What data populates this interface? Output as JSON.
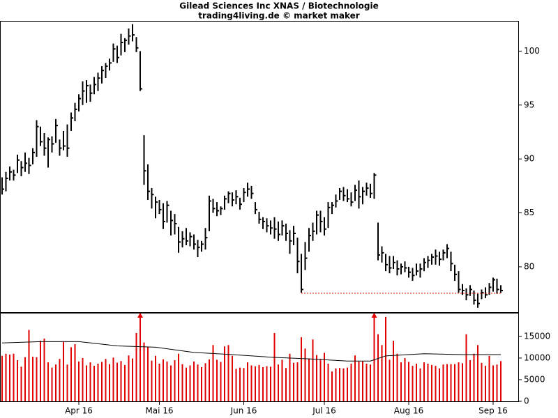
{
  "chart_data": {
    "type": "ohlc",
    "title": "Gilead Sciences Inc XNAS / Biotechnologie",
    "subtitle": "trading4living.de © market maker",
    "categories": [
      null,
      null,
      null,
      null,
      null,
      null,
      null,
      null,
      null,
      null,
      null,
      null,
      null,
      null,
      null,
      null,
      null,
      null,
      null,
      null,
      "Apr 16",
      null,
      null,
      null,
      null,
      null,
      null,
      null,
      null,
      null,
      null,
      null,
      null,
      null,
      null,
      null,
      null,
      null,
      null,
      null,
      null,
      "Mai 16",
      null,
      null,
      null,
      null,
      null,
      null,
      null,
      null,
      null,
      null,
      null,
      null,
      null,
      null,
      null,
      null,
      null,
      null,
      null,
      null,
      null,
      "Jun 16",
      null,
      null,
      null,
      null,
      null,
      null,
      null,
      null,
      null,
      null,
      null,
      null,
      null,
      null,
      null,
      null,
      null,
      null,
      null,
      null,
      "Jul 16",
      null,
      null,
      null,
      null,
      null,
      null,
      null,
      null,
      null,
      null,
      null,
      null,
      null,
      null,
      null,
      null,
      null,
      null,
      null,
      null,
      null,
      "Aug 16",
      null,
      null,
      null,
      null,
      null,
      null,
      null,
      null,
      null,
      null,
      null,
      null,
      null,
      null,
      null,
      null,
      null,
      null,
      null,
      null,
      null,
      "Sep 16",
      null,
      null
    ],
    "high": [
      88.3,
      88.8,
      89.3,
      89.0,
      90.4,
      89.8,
      90.6,
      90.1,
      91.0,
      93.6,
      93.0,
      92.4,
      92.0,
      92.1,
      93.7,
      91.8,
      92.6,
      93.2,
      94.3,
      95.2,
      96.0,
      97.2,
      97.3,
      96.9,
      97.6,
      98.0,
      98.6,
      98.9,
      99.3,
      100.7,
      100.5,
      101.6,
      101.2,
      102.1,
      102.5,
      101.3,
      100.0,
      92.2,
      89.5,
      87.3,
      86.5,
      86.2,
      85.9,
      86.1,
      85.2,
      84.9,
      83.7,
      83.3,
      83.6,
      83.2,
      83.0,
      82.5,
      82.4,
      83.6,
      86.6,
      86.3,
      86.0,
      85.6,
      86.6,
      87.0,
      86.9,
      87.1,
      86.4,
      87.3,
      87.8,
      87.5,
      86.0,
      85.1,
      84.6,
      84.5,
      84.3,
      84.6,
      84.2,
      84.3,
      84.0,
      83.4,
      83.8,
      82.7,
      81.2,
      82.3,
      83.6,
      84.1,
      85.2,
      85.2,
      84.6,
      86.0,
      86.0,
      86.7,
      87.3,
      87.4,
      87.2,
      86.9,
      87.6,
      88.0,
      87.4,
      87.8,
      87.7,
      88.7,
      84.1,
      81.9,
      81.2,
      81.0,
      81.0,
      80.6,
      80.3,
      80.5,
      80.0,
      79.9,
      80.3,
      80.3,
      80.8,
      81.0,
      81.2,
      81.6,
      81.4,
      81.6,
      82.1,
      81.4,
      80.2,
      79.6,
      78.4,
      78.0,
      78.3,
      77.8,
      77.5,
      77.9,
      78.1,
      78.5,
      79.0,
      78.9,
      78.3
    ],
    "low": [
      86.7,
      87.0,
      88.0,
      88.0,
      88.7,
      88.4,
      88.8,
      88.6,
      89.5,
      90.2,
      91.2,
      90.3,
      89.2,
      90.6,
      91.5,
      90.3,
      90.8,
      90.2,
      92.6,
      93.5,
      94.4,
      95.0,
      95.2,
      95.3,
      96.0,
      96.3,
      97.0,
      97.5,
      98.2,
      99.0,
      98.9,
      99.6,
      99.9,
      100.6,
      100.9,
      99.9,
      96.3,
      87.6,
      86.2,
      85.4,
      84.5,
      84.9,
      83.5,
      84.1,
      82.9,
      83.0,
      81.3,
      81.8,
      82.0,
      81.9,
      81.6,
      80.9,
      81.4,
      81.6,
      83.3,
      85.0,
      84.7,
      84.8,
      85.3,
      85.9,
      85.6,
      85.8,
      85.3,
      86.0,
      86.5,
      86.3,
      84.9,
      84.0,
      83.5,
      83.2,
      83.0,
      82.6,
      82.4,
      82.9,
      82.4,
      81.2,
      82.0,
      79.4,
      77.6,
      79.7,
      81.4,
      82.4,
      83.0,
      83.2,
      82.9,
      83.6,
      84.9,
      85.5,
      86.2,
      86.1,
      86.0,
      85.6,
      86.1,
      85.4,
      85.8,
      86.6,
      86.4,
      86.3,
      80.6,
      80.4,
      79.6,
      79.4,
      79.8,
      79.2,
      79.3,
      79.5,
      79.0,
      78.7,
      79.2,
      79.0,
      79.6,
      79.9,
      80.2,
      80.2,
      80.1,
      80.6,
      80.8,
      79.6,
      78.7,
      77.6,
      77.4,
      76.9,
      77.3,
      76.5,
      76.2,
      77.0,
      77.1,
      77.4,
      77.7,
      77.5,
      77.6
    ],
    "close": [
      87.2,
      88.2,
      88.8,
      88.5,
      89.9,
      89.2,
      89.6,
      89.4,
      90.6,
      93.0,
      91.6,
      91.0,
      91.8,
      91.4,
      93.1,
      91.0,
      91.2,
      91.0,
      93.8,
      94.6,
      95.6,
      96.3,
      96.8,
      96.1,
      96.9,
      97.5,
      98.2,
      98.6,
      98.9,
      100.2,
      99.4,
      100.8,
      101.0,
      101.4,
      101.5,
      100.3,
      96.5,
      88.9,
      87.0,
      86.7,
      86.0,
      85.3,
      84.2,
      85.7,
      84.3,
      84.0,
      82.3,
      82.6,
      82.4,
      82.8,
      82.1,
      81.8,
      82.1,
      82.7,
      86.1,
      85.4,
      85.2,
      85.4,
      86.3,
      86.8,
      86.2,
      86.5,
      85.8,
      86.9,
      87.2,
      86.8,
      85.3,
      84.4,
      84.2,
      83.8,
      83.6,
      83.5,
      83.0,
      83.8,
      83.1,
      82.4,
      83.1,
      80.5,
      77.9,
      80.8,
      82.9,
      83.3,
      84.8,
      84.2,
      83.5,
      85.5,
      85.7,
      86.1,
      87.0,
      86.6,
      86.3,
      86.0,
      87.1,
      86.5,
      87.0,
      87.3,
      86.8,
      88.5,
      81.1,
      81.3,
      80.2,
      79.9,
      80.4,
      79.8,
      80.0,
      79.9,
      79.5,
      79.2,
      79.6,
      79.8,
      80.4,
      80.6,
      80.9,
      81.0,
      80.7,
      81.3,
      81.7,
      80.3,
      79.3,
      77.9,
      77.8,
      77.4,
      77.9,
      76.9,
      76.6,
      77.6,
      77.4,
      78.1,
      78.8,
      77.9,
      77.8
    ],
    "color": "#000000",
    "ylim": [
      75.8,
      102.8
    ],
    "yticks": [
      80,
      85,
      90,
      95,
      100
    ],
    "support": {
      "value": 77.55,
      "x": [
        78,
        130
      ],
      "color": "#e00000"
    },
    "volume": {
      "values": [
        10500,
        11000,
        10800,
        11000,
        9500,
        8000,
        10200,
        16500,
        10300,
        10200,
        14000,
        14500,
        9000,
        7800,
        8500,
        9800,
        13800,
        8500,
        12500,
        13200,
        9200,
        10000,
        8300,
        9000,
        8200,
        8700,
        9100,
        9800,
        8600,
        10100,
        8900,
        9300,
        8400,
        10600,
        9900,
        15800,
        26000,
        13600,
        12500,
        9400,
        10500,
        8700,
        9700,
        9200,
        8300,
        9500,
        11000,
        8600,
        7800,
        8300,
        9200,
        8500,
        7900,
        8800,
        9700,
        13000,
        9600,
        9100,
        12700,
        13000,
        10500,
        7500,
        7800,
        7700,
        9000,
        8300,
        8100,
        8400,
        7900,
        8100,
        8000,
        15800,
        8500,
        9600,
        7700,
        11000,
        8900,
        9000,
        14800,
        12200,
        9900,
        14300,
        10700,
        9800,
        11200,
        8700,
        6900,
        7600,
        7700,
        7600,
        7800,
        8700,
        10600,
        9200,
        9200,
        8700,
        8500,
        24000,
        15500,
        13000,
        19500,
        9600,
        14000,
        11000,
        9000,
        10000,
        9100,
        8200,
        8700,
        7600,
        9000,
        8700,
        8400,
        8200,
        7600,
        8500,
        8600,
        8600,
        8600,
        9000,
        8800,
        15500,
        9500,
        11000,
        13000,
        8900,
        8200,
        10500,
        8300,
        8500,
        9300
      ],
      "color": "#e00000",
      "ylim": [
        0,
        20300
      ],
      "yticks": [
        0,
        5000,
        10000,
        15000
      ],
      "average": {
        "x": [
          0,
          10,
          20,
          30,
          40,
          50,
          60,
          70,
          80,
          90,
          96,
          100,
          110,
          120,
          130
        ],
        "values": [
          13500,
          13800,
          13800,
          12800,
          12500,
          11300,
          10800,
          10200,
          9800,
          9300,
          9300,
          10500,
          11000,
          10800,
          10800
        ],
        "color": "#000000"
      }
    }
  }
}
